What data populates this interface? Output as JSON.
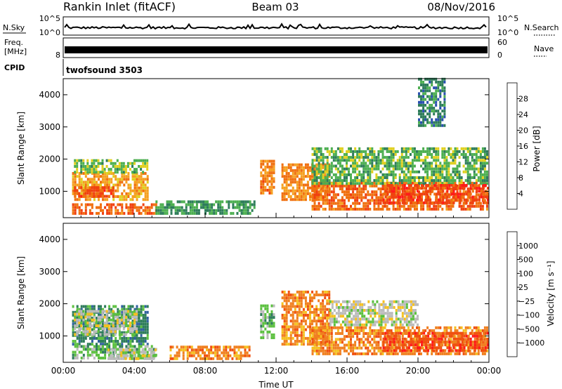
{
  "header": {
    "title_left": "Rankin Inlet (fitACF)",
    "title_center": "Beam 03",
    "title_right": "08/Nov/2016"
  },
  "strip_panels": {
    "nsky": {
      "label": "N.Sky",
      "right_label": "N.Search",
      "left_ticks": [
        "10^5",
        "10^0"
      ],
      "right_ticks": [
        "10^5",
        "10^0"
      ]
    },
    "freq": {
      "label_line1": "Freq.",
      "label_line2": "[MHz]",
      "right_label": "Nave",
      "left_ticks": [
        "8"
      ],
      "right_ticks": [
        "60",
        "0"
      ]
    },
    "cpid": {
      "label": "CPID",
      "value": "twofsound 3503"
    }
  },
  "colors": {
    "power": [
      "#1a1aff",
      "#2a4fb0",
      "#2e7d5a",
      "#4caf50",
      "#e0d020",
      "#f5a020",
      "#f07010",
      "#f04010",
      "#ff1a1a"
    ],
    "velocity": [
      "#1a30c0",
      "#3060a0",
      "#2e7d5a",
      "#5cc040",
      "#bbbbbb",
      "#f5c020",
      "#f08020",
      "#f05010",
      "#ff1a1a"
    ]
  },
  "chart_data": [
    {
      "type": "heatmap",
      "name": "power",
      "ylabel": "Slant Range [km]",
      "xlabel": "",
      "ylim": [
        180,
        4500
      ],
      "yticks": [
        1000,
        2000,
        3000,
        4000
      ],
      "xlim": [
        0,
        24
      ],
      "colorbar": {
        "label": "Power [dB]",
        "range": [
          0,
          32
        ],
        "ticks": [
          "4",
          "8",
          "12",
          "16",
          "20",
          "24",
          "28"
        ]
      },
      "regions": [
        {
          "t0": 0.5,
          "t1": 4.8,
          "r0": 700,
          "r1": 1600,
          "value": 20
        },
        {
          "t0": 0.6,
          "t1": 4.8,
          "r0": 1550,
          "r1": 1950,
          "value": 13
        },
        {
          "t0": 0.6,
          "t1": 2.8,
          "r0": 800,
          "r1": 1100,
          "value": 27
        },
        {
          "t0": 0.5,
          "t1": 5.2,
          "r0": 180,
          "r1": 550,
          "value": 25
        },
        {
          "t0": 5.2,
          "t1": 10.8,
          "r0": 180,
          "r1": 700,
          "value": 10
        },
        {
          "t0": 11.1,
          "t1": 11.9,
          "r0": 900,
          "r1": 1900,
          "value": 23
        },
        {
          "t0": 12.3,
          "t1": 15.0,
          "r0": 700,
          "r1": 1800,
          "value": 22
        },
        {
          "t0": 14.0,
          "t1": 24.0,
          "r0": 400,
          "r1": 1300,
          "value": 25
        },
        {
          "t0": 14.0,
          "t1": 24.0,
          "r0": 1200,
          "r1": 2300,
          "value": 12
        },
        {
          "t0": 18.0,
          "t1": 24.0,
          "r0": 600,
          "r1": 1200,
          "value": 28
        },
        {
          "t0": 20.0,
          "t1": 21.5,
          "r0": 3000,
          "r1": 4500,
          "value": 8
        }
      ]
    },
    {
      "type": "heatmap",
      "name": "velocity",
      "ylabel": "Slant Range [km]",
      "xlabel": "Time UT",
      "ylim": [
        180,
        4500
      ],
      "yticks": [
        1000,
        2000,
        3000,
        4000
      ],
      "xlim": [
        0,
        24
      ],
      "xtick_labels": [
        "00:00",
        "04:00",
        "08:00",
        "12:00",
        "16:00",
        "20:00",
        "00:00"
      ],
      "colorbar": {
        "label": "Velocity [m s⁻¹]",
        "ticks": [
          "1000",
          "500",
          "100",
          "25",
          "−25",
          "−100",
          "−500",
          "−1000"
        ]
      },
      "regions": [
        {
          "t0": 0.5,
          "t1": 4.8,
          "r0": 700,
          "r1": 1950,
          "value": 2
        },
        {
          "t0": 0.6,
          "t1": 4.2,
          "r0": 1000,
          "r1": 1800,
          "value": 4
        },
        {
          "t0": 0.5,
          "t1": 5.2,
          "r0": 180,
          "r1": 700,
          "value": 3
        },
        {
          "t0": 2.5,
          "t1": 5.2,
          "r0": 250,
          "r1": 550,
          "value": 4
        },
        {
          "t0": 6.0,
          "t1": 10.5,
          "r0": 250,
          "r1": 700,
          "value": 6
        },
        {
          "t0": 11.1,
          "t1": 11.9,
          "r0": 900,
          "r1": 1900,
          "value": 3
        },
        {
          "t0": 12.3,
          "t1": 15.0,
          "r0": 700,
          "r1": 2400,
          "value": 6
        },
        {
          "t0": 14.0,
          "t1": 24.0,
          "r0": 400,
          "r1": 1300,
          "value": 6
        },
        {
          "t0": 15.0,
          "t1": 20.0,
          "r0": 1300,
          "r1": 2100,
          "value": 4
        },
        {
          "t0": 18.0,
          "t1": 24.0,
          "r0": 500,
          "r1": 1100,
          "value": 7
        }
      ]
    }
  ]
}
